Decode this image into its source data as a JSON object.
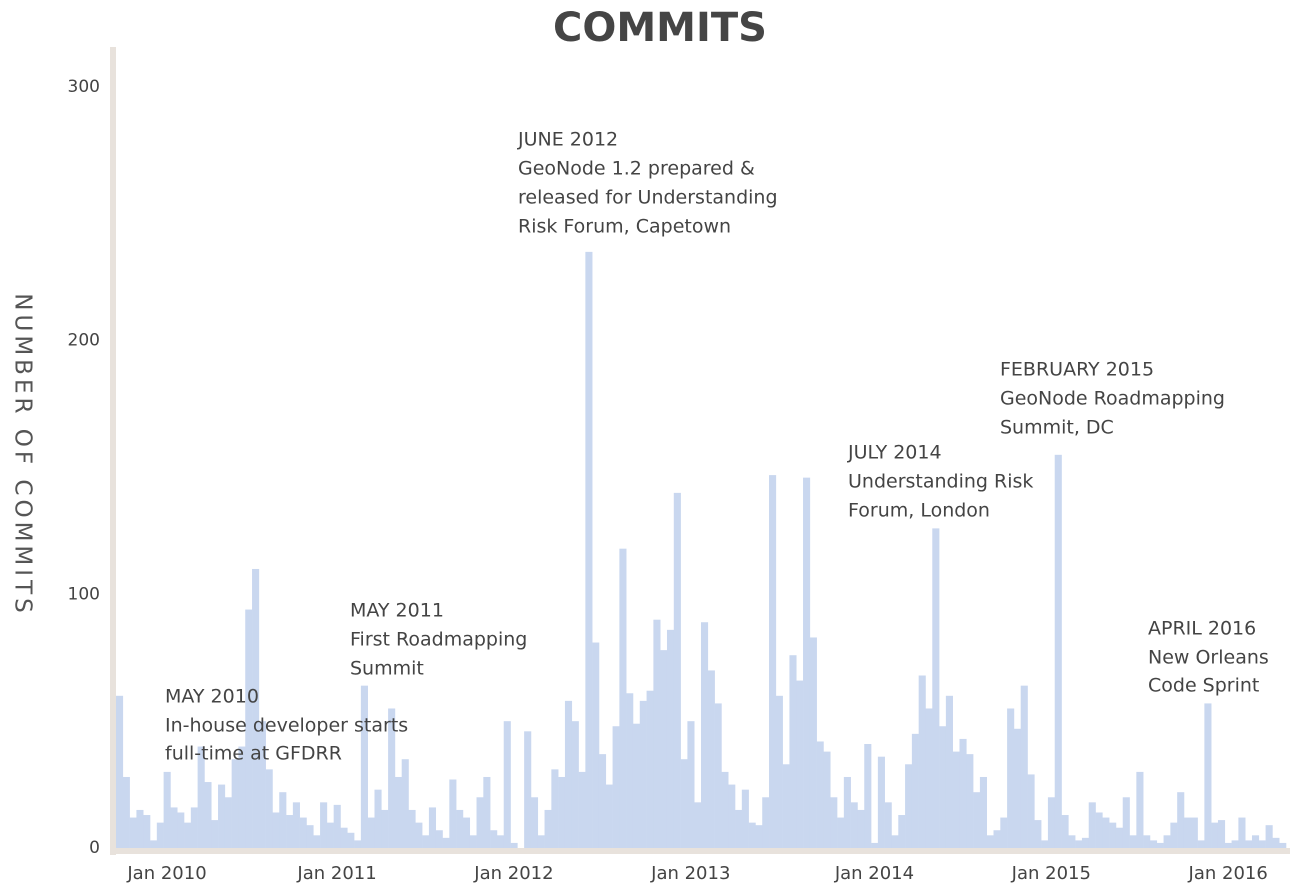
{
  "chart_data": {
    "type": "bar",
    "title": "COMMITS",
    "y_label": "NUMBER OF COMMITS",
    "color": "#c9d7ef",
    "grid": false,
    "ylim": [
      0,
      300
    ],
    "yticks": [
      0,
      100,
      200,
      300
    ],
    "categories": [
      null,
      null,
      null,
      null,
      null,
      null,
      null,
      "Jan 2010",
      null,
      null,
      null,
      null,
      null,
      null,
      null,
      null,
      null,
      null,
      null,
      null,
      null,
      null,
      null,
      null,
      null,
      null,
      null,
      null,
      null,
      null,
      null,
      null,
      "Jan 2011",
      null,
      null,
      null,
      null,
      null,
      null,
      null,
      null,
      null,
      null,
      null,
      null,
      null,
      null,
      null,
      null,
      null,
      null,
      null,
      null,
      null,
      null,
      null,
      null,
      null,
      "Jan 2012",
      null,
      null,
      null,
      null,
      null,
      null,
      null,
      null,
      null,
      null,
      null,
      null,
      null,
      null,
      null,
      null,
      null,
      null,
      null,
      null,
      null,
      null,
      null,
      null,
      null,
      "Jan 2013",
      null,
      null,
      null,
      null,
      null,
      null,
      null,
      null,
      null,
      null,
      null,
      null,
      null,
      null,
      null,
      null,
      null,
      null,
      null,
      null,
      null,
      null,
      null,
      null,
      null,
      null,
      "Jan 2014",
      null,
      null,
      null,
      null,
      null,
      null,
      null,
      null,
      null,
      null,
      null,
      null,
      null,
      null,
      null,
      null,
      null,
      null,
      null,
      null,
      null,
      null,
      null,
      null,
      null,
      "Jan 2015",
      null,
      null,
      null,
      null,
      null,
      null,
      null,
      null,
      null,
      null,
      null,
      null,
      null,
      null,
      null,
      null,
      null,
      null,
      null,
      null,
      null,
      null,
      null,
      null,
      null,
      "Jan 2016",
      null,
      null,
      null,
      null,
      null,
      null,
      null,
      null
    ],
    "values": [
      60,
      28,
      12,
      15,
      13,
      3,
      10,
      30,
      16,
      14,
      10,
      16,
      40,
      26,
      11,
      25,
      20,
      35,
      40,
      94,
      110,
      50,
      31,
      14,
      22,
      13,
      18,
      12,
      9,
      5,
      18,
      10,
      17,
      8,
      6,
      3,
      64,
      12,
      23,
      15,
      55,
      28,
      35,
      15,
      10,
      5,
      16,
      7,
      4,
      27,
      15,
      12,
      5,
      20,
      28,
      7,
      5,
      50,
      2,
      0,
      46,
      20,
      5,
      15,
      31,
      28,
      58,
      50,
      30,
      235,
      81,
      37,
      25,
      48,
      118,
      61,
      49,
      58,
      62,
      90,
      78,
      86,
      140,
      35,
      50,
      18,
      89,
      70,
      57,
      30,
      25,
      15,
      23,
      10,
      9,
      20,
      147,
      60,
      33,
      76,
      66,
      146,
      83,
      42,
      38,
      20,
      12,
      28,
      18,
      15,
      41,
      2,
      36,
      18,
      5,
      13,
      33,
      45,
      68,
      55,
      126,
      48,
      60,
      38,
      43,
      37,
      22,
      28,
      5,
      7,
      12,
      55,
      47,
      64,
      29,
      11,
      3,
      20,
      155,
      13,
      5,
      3,
      4,
      18,
      14,
      12,
      10,
      8,
      20,
      5,
      30,
      5,
      3,
      2,
      5,
      10,
      22,
      12,
      12,
      3,
      57,
      10,
      11,
      2,
      3,
      12,
      3,
      5,
      3,
      9,
      4,
      2
    ],
    "annotations": [
      {
        "heading": "MAY 2010",
        "lines": [
          "In-house developer starts",
          "full-time at GFDRR"
        ]
      },
      {
        "heading": "MAY 2011",
        "lines": [
          "First Roadmapping",
          "Summit"
        ]
      },
      {
        "heading": "JUNE 2012",
        "lines": [
          "GeoNode 1.2 prepared &",
          "released for Understanding",
          "Risk Forum, Capetown"
        ]
      },
      {
        "heading": "JULY 2014",
        "lines": [
          "Understanding Risk",
          "Forum, London"
        ]
      },
      {
        "heading": "FEBRUARY 2015",
        "lines": [
          "GeoNode Roadmapping",
          "Summit, DC"
        ]
      },
      {
        "heading": "APRIL 2016",
        "lines": [
          "New Orleans",
          "Code Sprint"
        ]
      }
    ]
  }
}
